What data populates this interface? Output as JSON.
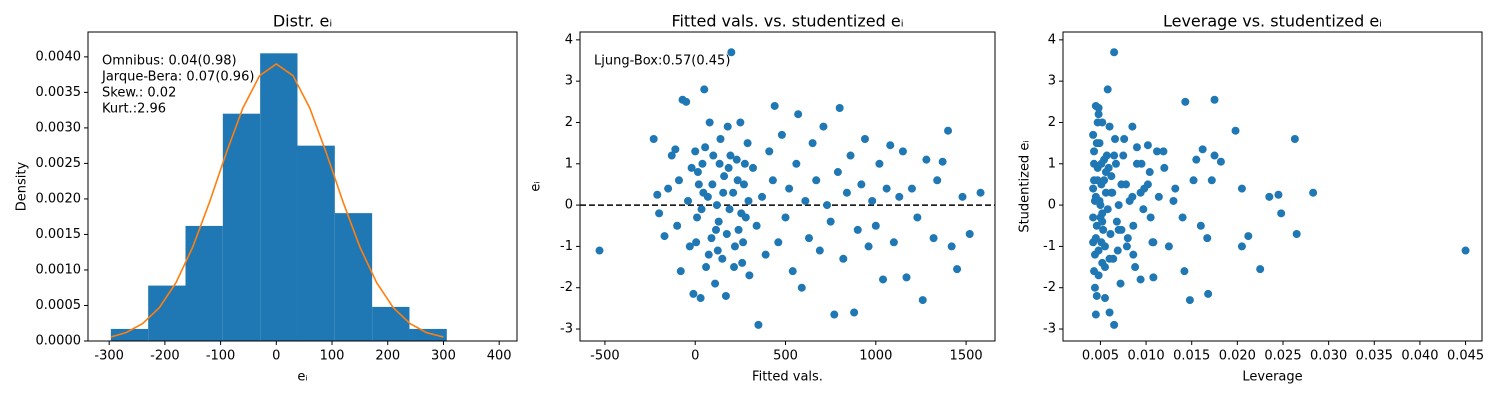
{
  "chart_data": [
    {
      "type": "histogram",
      "title": "Distr. eᵢ",
      "xlabel": "eᵢ",
      "ylabel": "Density",
      "annotations": [
        "Omnibus: 0.04(0.98)",
        "Jarque-Bera: 0.07(0.96)",
        "Skew.: 0.02",
        "Kurt.:2.96"
      ],
      "bins": [
        -297,
        -230,
        -163,
        -96,
        -29,
        38,
        105,
        172,
        239,
        306
      ],
      "values": [
        0.00017,
        0.00078,
        0.00162,
        0.0032,
        0.00405,
        0.00275,
        0.0018,
        0.00048,
        0.00017
      ],
      "color": "#1f77b4",
      "curve": {
        "color": "#ff7f0e",
        "x": [
          -297,
          -270,
          -240,
          -210,
          -180,
          -150,
          -120,
          -90,
          -60,
          -30,
          0,
          30,
          60,
          90,
          120,
          150,
          180,
          210,
          240,
          270,
          300
        ],
        "y": [
          5.63e-05,
          0.000117,
          0.000245,
          0.000469,
          0.000822,
          0.001323,
          0.001952,
          0.002643,
          0.00328,
          0.003735,
          0.0039,
          0.003735,
          0.00328,
          0.002643,
          0.001952,
          0.001323,
          0.000822,
          0.000469,
          0.000245,
          0.000117,
          5.63e-05
        ]
      },
      "xlim": [
        -338,
        432
      ],
      "xticks": [
        -300,
        -200,
        -100,
        0,
        100,
        200,
        300,
        400
      ],
      "ylim": [
        0,
        0.00435
      ],
      "yticks": [
        {
          "value": 0,
          "label": "0.0000"
        },
        0.0005,
        {
          "value": 0.001,
          "label": "0.0010"
        },
        0.0015,
        {
          "value": 0.002,
          "label": "0.0020"
        },
        0.0025,
        {
          "value": 0.003,
          "label": "0.0030"
        },
        0.0035,
        {
          "value": 0.004,
          "label": "0.0040"
        }
      ],
      "grid": false
    },
    {
      "type": "scatter",
      "title": "Fitted vals. vs. studentized eᵢ",
      "xlabel": "Fitted vals.",
      "ylabel": "eᵢ",
      "annotations": [
        "Ljung-Box:0.57(0.45)"
      ],
      "color": "#1f77b4",
      "reference_line": {
        "y": 0,
        "dash": "dashed",
        "color": "#000000"
      },
      "x": [
        -530,
        -230,
        -210,
        -200,
        -170,
        -150,
        -130,
        -110,
        -100,
        -90,
        -80,
        -70,
        -50,
        -40,
        -30,
        -20,
        -10,
        0,
        10,
        20,
        30,
        40,
        50,
        60,
        70,
        80,
        90,
        100,
        110,
        120,
        130,
        140,
        150,
        160,
        170,
        180,
        190,
        200,
        210,
        220,
        230,
        240,
        250,
        260,
        270,
        280,
        290,
        300,
        320,
        340,
        350,
        370,
        390,
        410,
        430,
        440,
        460,
        480,
        500,
        520,
        540,
        560,
        570,
        590,
        610,
        630,
        650,
        670,
        690,
        710,
        730,
        750,
        770,
        790,
        800,
        820,
        840,
        860,
        880,
        900,
        920,
        940,
        960,
        980,
        1000,
        1020,
        1040,
        1060,
        1080,
        1100,
        1130,
        1150,
        1170,
        1200,
        1230,
        1260,
        1280,
        1320,
        1340,
        1370,
        1400,
        1420,
        1450,
        1480,
        1520,
        1580,
        15,
        35,
        55,
        75,
        95,
        115,
        135,
        155,
        175,
        195,
        215,
        235,
        255,
        275,
        295,
        5,
        45,
        125,
        185,
        265
      ],
      "values": [
        -1.1,
        1.6,
        0.25,
        -0.2,
        -0.75,
        0.4,
        1.2,
        1.35,
        -0.5,
        0.6,
        -1.6,
        2.55,
        2.5,
        0.1,
        -1.0,
        0.9,
        -2.15,
        1.3,
        -0.3,
        0.5,
        -2.25,
        1.0,
        2.8,
        -1.5,
        0.2,
        2.0,
        -0.8,
        1.2,
        -1.9,
        0.0,
        -0.4,
        1.6,
        -1.3,
        0.7,
        -2.2,
        1.9,
        -0.1,
        3.7,
        0.3,
        -1.0,
        1.1,
        -0.6,
        2.0,
        -1.4,
        0.5,
        -0.3,
        1.5,
        -1.7,
        0.9,
        -0.5,
        -2.9,
        0.2,
        -1.2,
        1.3,
        0.6,
        2.4,
        -0.9,
        1.7,
        -0.3,
        0.4,
        -1.6,
        1.0,
        2.2,
        -2.0,
        0.1,
        -0.8,
        1.5,
        0.6,
        -1.1,
        1.9,
        0.0,
        -0.4,
        -2.65,
        0.8,
        2.35,
        -1.3,
        0.3,
        1.2,
        -2.6,
        -0.6,
        0.5,
        1.6,
        -1.0,
        0.1,
        -0.5,
        1.0,
        -1.8,
        0.4,
        1.45,
        -0.9,
        0.2,
        1.3,
        -1.75,
        0.4,
        -0.3,
        -2.3,
        1.1,
        -0.8,
        0.6,
        1.05,
        1.8,
        -1.0,
        -1.55,
        0.2,
        -0.7,
        0.3,
        0.8,
        -0.1,
        1.4,
        -1.2,
        0.5,
        -0.6,
        1.0,
        0.3,
        -0.7,
        1.2,
        -1.5,
        0.6,
        -0.2,
        1.0,
        0.1,
        -0.9,
        0.3,
        -1.1,
        0.9,
        -0.9
      ],
      "xlim": [
        -638,
        1660
      ],
      "xticks": [
        -500,
        0,
        500,
        1000,
        1500
      ],
      "ylim": [
        -3.29,
        4.19
      ],
      "yticks": [
        -3,
        -2,
        -1,
        0,
        1,
        2,
        3,
        4
      ],
      "grid": false
    },
    {
      "type": "scatter",
      "title": "Leverage vs. studentized eᵢ",
      "xlabel": "Leverage",
      "ylabel": "Studentized eᵢ",
      "color": "#1f77b4",
      "x": [
        0.045,
        0.0263,
        0.0245,
        0.0248,
        0.0212,
        0.0205,
        0.0175,
        0.0162,
        0.016,
        0.0152,
        0.0142,
        0.0175,
        0.0143,
        0.013,
        0.0125,
        0.012,
        0.0168,
        0.0112,
        0.0105,
        0.0102,
        0.0055,
        0.0095,
        0.0058,
        0.0088,
        0.0085,
        0.0052,
        0.008,
        0.0075,
        0.0072,
        0.007,
        0.0068,
        0.0066,
        0.0064,
        0.0062,
        0.0046,
        0.006,
        0.0058,
        0.0065,
        0.0056,
        0.0055,
        0.0054,
        0.0053,
        0.0047,
        0.0052,
        0.0051,
        0.005,
        0.0049,
        0.0048,
        0.0047,
        0.0046,
        0.0065,
        0.0045,
        0.0044,
        0.0043,
        0.0043,
        0.0045,
        0.0042,
        0.0042,
        0.0042,
        0.0042,
        0.0043,
        0.0043,
        0.0048,
        0.0044,
        0.0044,
        0.0045,
        0.0046,
        0.0047,
        0.0048,
        0.0085,
        0.005,
        0.0052,
        0.0045,
        0.0056,
        0.0048,
        0.006,
        0.0062,
        0.0065,
        0.006,
        0.007,
        0.0073,
        0.0076,
        0.0079,
        0.0082,
        0.0086,
        0.009,
        0.0094,
        0.0098,
        0.0102,
        0.0107,
        0.0114,
        0.0119,
        0.0108,
        0.0132,
        0.014,
        0.0148,
        0.0155,
        0.0167,
        0.0172,
        0.0182,
        0.0198,
        0.0205,
        0.0225,
        0.0235,
        0.0265,
        0.0283,
        0.0104,
        0.0097,
        0.009,
        0.0086,
        0.0078,
        0.0073,
        0.0067,
        0.0063,
        0.0061,
        0.0057,
        0.0055,
        0.0054,
        0.0052,
        0.0051,
        0.0049,
        0.0108,
        0.0094,
        0.0069,
        0.0059,
        0.0051
      ],
      "values": [
        -1.1,
        1.6,
        0.25,
        -0.2,
        -0.75,
        0.4,
        1.2,
        1.35,
        -0.5,
        0.6,
        -1.6,
        2.55,
        2.5,
        0.1,
        -1.0,
        0.9,
        -2.15,
        1.3,
        -0.3,
        0.5,
        -2.25,
        1.0,
        2.8,
        -1.5,
        0.2,
        2.0,
        -0.8,
        1.2,
        -1.9,
        0.0,
        -0.4,
        1.6,
        -1.3,
        0.7,
        -2.2,
        1.9,
        -0.1,
        3.7,
        0.3,
        -1.0,
        1.1,
        -0.6,
        2.0,
        -1.4,
        0.5,
        -0.3,
        1.5,
        -1.7,
        0.9,
        -0.5,
        -2.9,
        0.2,
        -1.2,
        1.3,
        0.6,
        2.4,
        -0.9,
        1.7,
        -0.3,
        0.4,
        -1.6,
        1.0,
        2.2,
        -2.0,
        0.1,
        -0.8,
        1.5,
        0.6,
        -1.1,
        1.9,
        0.0,
        -0.4,
        -2.65,
        0.8,
        2.35,
        -1.3,
        0.3,
        1.2,
        -2.6,
        -0.6,
        0.5,
        1.6,
        -1.0,
        0.1,
        -0.5,
        1.0,
        -1.8,
        0.4,
        1.45,
        -0.9,
        0.2,
        1.3,
        -1.75,
        0.4,
        -0.3,
        -2.3,
        1.1,
        -0.8,
        0.6,
        1.05,
        1.8,
        -1.0,
        -1.55,
        0.2,
        -0.7,
        0.3,
        0.8,
        -0.1,
        1.4,
        -1.2,
        0.5,
        -0.6,
        1.0,
        0.3,
        -0.7,
        1.2,
        -1.5,
        0.6,
        -0.2,
        1.0,
        0.1,
        -0.9,
        0.3,
        -1.1,
        0.9,
        -0.9
      ],
      "xlim": [
        0.0009,
        0.0468
      ],
      "xticks": [
        0.005,
        {
          "value": 0.01,
          "label": "0.010"
        },
        0.015,
        {
          "value": 0.02,
          "label": "0.020"
        },
        0.025,
        {
          "value": 0.03,
          "label": "0.030"
        },
        0.035,
        {
          "value": 0.04,
          "label": "0.040"
        },
        0.045
      ],
      "ylim": [
        -3.29,
        4.19
      ],
      "yticks": [
        -3,
        -2,
        -1,
        0,
        1,
        2,
        3,
        4
      ],
      "grid": false
    }
  ]
}
